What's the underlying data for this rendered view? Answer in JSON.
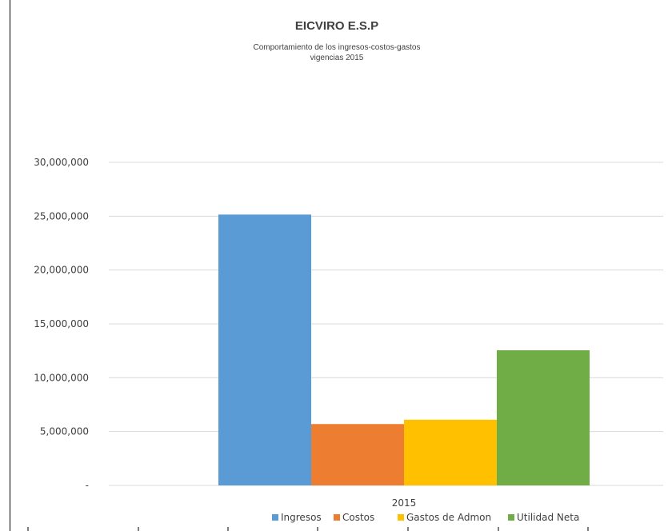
{
  "chart_data": {
    "type": "bar",
    "title": "EICVIRO E.S.P",
    "subtitle_lines": [
      "Comportamiento de los ingresos-costos-gastos",
      "vigencias 2015"
    ],
    "categories": [
      "2015"
    ],
    "series": [
      {
        "name": "Ingresos",
        "values": [
          25150000
        ],
        "color": "#5B9BD5"
      },
      {
        "name": "Costos",
        "values": [
          5700000
        ],
        "color": "#ED7D31"
      },
      {
        "name": "Gastos de Admon",
        "values": [
          6100000
        ],
        "color": "#FFC000"
      },
      {
        "name": "Utilidad Neta",
        "values": [
          12550000
        ],
        "color": "#70AD47"
      }
    ],
    "y_ticks": [
      0,
      5000000,
      10000000,
      15000000,
      20000000,
      25000000,
      30000000
    ],
    "y_tick_labels": [
      "-",
      "5,000,000",
      "10,000,000",
      "15,000,000",
      "20,000,000",
      "25,000,000",
      "30,000,000"
    ],
    "ylim": [
      0,
      30000000
    ],
    "grid": true,
    "legend_position": "bottom",
    "gridline_color": "#D9D9D9",
    "text_color": "#404040"
  }
}
